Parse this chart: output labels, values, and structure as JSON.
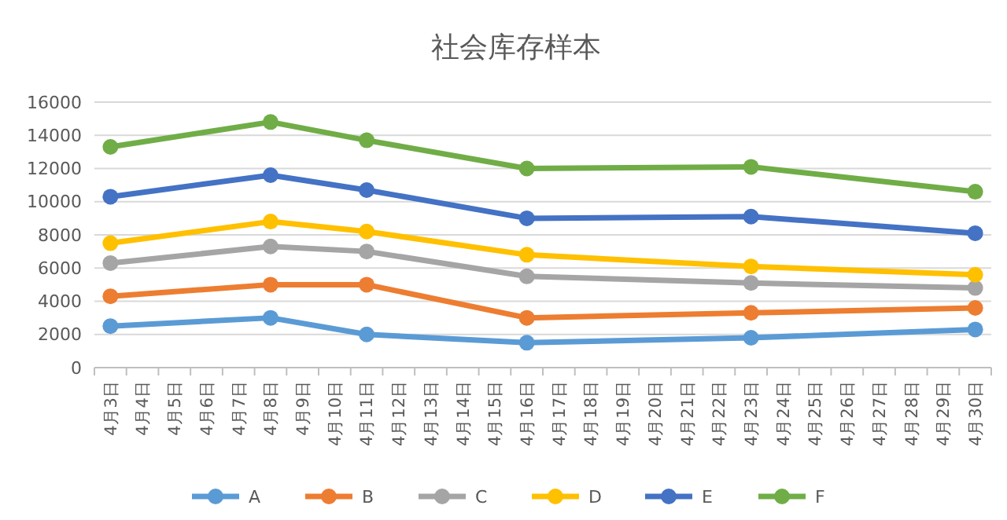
{
  "chart_data": {
    "type": "line",
    "title": "社会库存样本",
    "categories": [
      "4月3日",
      "4月4日",
      "4月5日",
      "4月6日",
      "4月7日",
      "4月8日",
      "4月9日",
      "4月10日",
      "4月11日",
      "4月12日",
      "4月13日",
      "4月14日",
      "4月15日",
      "4月16日",
      "4月17日",
      "4月18日",
      "4月19日",
      "4月20日",
      "4月21日",
      "4月22日",
      "4月23日",
      "4月24日",
      "4月25日",
      "4月26日",
      "4月27日",
      "4月28日",
      "4月29日",
      "4月30日"
    ],
    "series": [
      {
        "name": "A",
        "color": "#5b9bd5",
        "values": [
          2500,
          null,
          null,
          null,
          null,
          3000,
          null,
          null,
          2000,
          null,
          null,
          null,
          null,
          1500,
          null,
          null,
          null,
          null,
          null,
          null,
          1800,
          null,
          null,
          null,
          null,
          null,
          null,
          2300
        ]
      },
      {
        "name": "B",
        "color": "#ed7d31",
        "values": [
          4300,
          null,
          null,
          null,
          null,
          5000,
          null,
          null,
          5000,
          null,
          null,
          null,
          null,
          3000,
          null,
          null,
          null,
          null,
          null,
          null,
          3300,
          null,
          null,
          null,
          null,
          null,
          null,
          3600
        ]
      },
      {
        "name": "C",
        "color": "#a5a5a5",
        "values": [
          6300,
          null,
          null,
          null,
          null,
          7300,
          null,
          null,
          7000,
          null,
          null,
          null,
          null,
          5500,
          null,
          null,
          null,
          null,
          null,
          null,
          5100,
          null,
          null,
          null,
          null,
          null,
          null,
          4800
        ]
      },
      {
        "name": "D",
        "color": "#ffc000",
        "values": [
          7500,
          null,
          null,
          null,
          null,
          8800,
          null,
          null,
          8200,
          null,
          null,
          null,
          null,
          6800,
          null,
          null,
          null,
          null,
          null,
          null,
          6100,
          null,
          null,
          null,
          null,
          null,
          null,
          5600
        ]
      },
      {
        "name": "E",
        "color": "#4472c4",
        "values": [
          10300,
          null,
          null,
          null,
          null,
          11600,
          null,
          null,
          10700,
          null,
          null,
          null,
          null,
          9000,
          null,
          null,
          null,
          null,
          null,
          null,
          9100,
          null,
          null,
          null,
          null,
          null,
          null,
          8100
        ]
      },
      {
        "name": "F",
        "color": "#70ad47",
        "values": [
          13300,
          null,
          null,
          null,
          null,
          14800,
          null,
          null,
          13700,
          null,
          null,
          null,
          null,
          12000,
          null,
          null,
          null,
          null,
          null,
          null,
          12100,
          null,
          null,
          null,
          null,
          null,
          null,
          10600
        ]
      }
    ],
    "ylim": [
      0,
      16000
    ],
    "yticks": [
      0,
      2000,
      4000,
      6000,
      8000,
      10000,
      12000,
      14000,
      16000
    ],
    "grid": "y",
    "legend": "bottom",
    "marker": "circle",
    "line_style": "solid"
  }
}
